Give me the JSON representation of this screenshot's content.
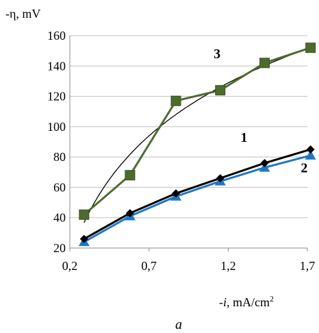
{
  "chart_data": {
    "type": "line",
    "ylabel": "-η, mV",
    "xlabel_prefix": "-",
    "xlabel_var": "i",
    "xlabel_unit": ", mA/cm",
    "xlabel_sup": "2",
    "caption": "a",
    "xlim": [
      0.2,
      1.7
    ],
    "ylim": [
      20,
      160
    ],
    "x_ticks": [
      "0,2",
      "0,7",
      "1,2",
      "1,7"
    ],
    "x_tick_values": [
      0.2,
      0.7,
      1.2,
      1.7
    ],
    "y_ticks": [
      "20",
      "40",
      "60",
      "80",
      "100",
      "120",
      "140",
      "160"
    ],
    "y_tick_values": [
      20,
      40,
      60,
      80,
      100,
      120,
      140,
      160
    ],
    "grid": "horizontal",
    "series": [
      {
        "label": "1",
        "color": "#000000",
        "marker": "diamond",
        "x": [
          0.29,
          0.58,
          0.87,
          1.15,
          1.43,
          1.72
        ],
        "values": [
          26,
          43,
          56,
          66,
          76,
          85
        ]
      },
      {
        "label": "2",
        "color": "#1f77c4",
        "marker": "triangle",
        "x": [
          0.29,
          0.58,
          0.87,
          1.15,
          1.43,
          1.72
        ],
        "values": [
          24,
          41,
          54,
          64,
          73,
          81
        ]
      },
      {
        "label": "3",
        "color": "#4e6b2e",
        "marker": "square",
        "x": [
          0.29,
          0.58,
          0.87,
          1.15,
          1.43,
          1.72
        ],
        "values": [
          42,
          68,
          117,
          124,
          142,
          152
        ],
        "trend": {
          "type": "logarithmic",
          "color": "#000000"
        }
      }
    ]
  }
}
